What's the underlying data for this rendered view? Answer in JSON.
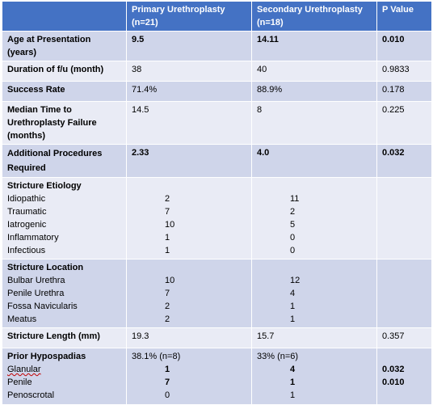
{
  "header": {
    "blank": "",
    "primary": "Primary Urethroplasty (n=21)",
    "secondary": "Secondary Urethroplasty (n=18)",
    "pvalue": "P Value"
  },
  "rows": {
    "age": {
      "label": "Age at Presentation (years)",
      "primary": "9.5",
      "secondary": "14.11",
      "p": "0.010"
    },
    "duration": {
      "label": "Duration of f/u (month)",
      "primary": "38",
      "secondary": "40",
      "p": "0.9833"
    },
    "success": {
      "label": "Success Rate",
      "primary": "71.4%",
      "secondary": "88.9%",
      "p": "0.178"
    },
    "median": {
      "label": "Median Time to Urethroplasty Failure (months)",
      "primary": "14.5",
      "secondary": "8",
      "p": "0.225"
    },
    "additional": {
      "label": "Additional Procedures Required",
      "primary": "2.33",
      "secondary": "4.0",
      "p": "0.032"
    },
    "length": {
      "label": "Stricture Length (mm)",
      "primary": "19.3",
      "secondary": "15.7",
      "p": "0.357"
    }
  },
  "etiology": {
    "title": "Stricture Etiology",
    "items": [
      {
        "name": "Idiopathic",
        "primary": "2",
        "secondary": "11"
      },
      {
        "name": "Traumatic",
        "primary": "7",
        "secondary": "2"
      },
      {
        "name": "Iatrogenic",
        "primary": "10",
        "secondary": "5"
      },
      {
        "name": "Inflammatory",
        "primary": "1",
        "secondary": "0"
      },
      {
        "name": "Infectious",
        "primary": "1",
        "secondary": "0"
      }
    ]
  },
  "location": {
    "title": "Stricture Location",
    "items": [
      {
        "name": "Bulbar Urethra",
        "primary": "10",
        "secondary": "12"
      },
      {
        "name": "Penile Urethra",
        "primary": "7",
        "secondary": "4"
      },
      {
        "name": "Fossa Navicularis",
        "primary": "2",
        "secondary": "1"
      },
      {
        "name": "Meatus",
        "primary": "2",
        "secondary": "1"
      }
    ]
  },
  "hypospadias": {
    "title": "Prior Hypospadias",
    "primary_total": "38.1% (n=8)",
    "secondary_total": "33% (n=6)",
    "items": [
      {
        "name": "Glanular",
        "primary": "1",
        "secondary": "4",
        "p": "0.032"
      },
      {
        "name": "Penile",
        "primary": "7",
        "secondary": "1",
        "p": "0.010"
      },
      {
        "name": "Penoscrotal",
        "primary": "0",
        "secondary": "1",
        "p": ""
      }
    ]
  }
}
